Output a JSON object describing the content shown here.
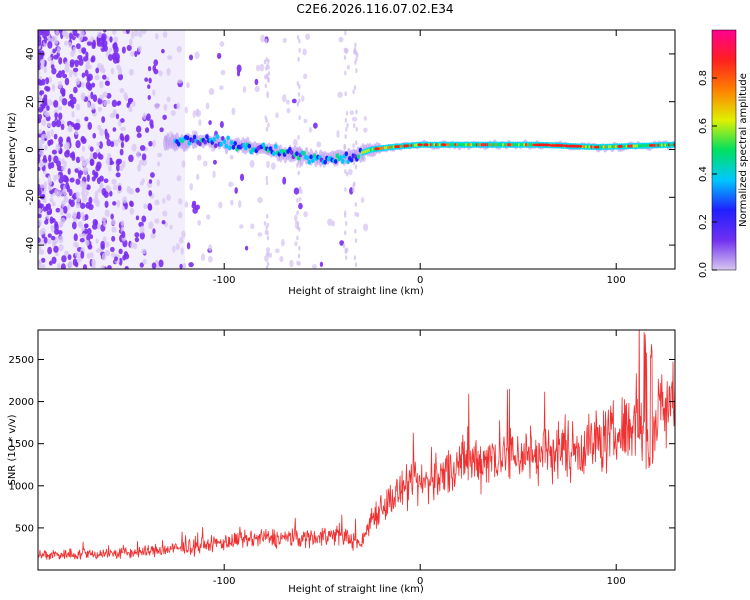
{
  "title": "C2E6.2026.116.07.02.E34",
  "colors": {
    "snr_line": "#f03030",
    "frame": "#000000",
    "colorbar_stops": [
      "#d8c8f0",
      "#7030f0",
      "#2020ff",
      "#00c8ff",
      "#00e060",
      "#e0f000",
      "#ff8000",
      "#ff2020",
      "#ff0090"
    ]
  },
  "chart_data": [
    {
      "type": "heatmap",
      "name": "spectrogram",
      "xlabel": "Height of straight line (km)",
      "ylabel": "Frequency (Hz)",
      "xlim": [
        -195,
        130
      ],
      "ylim": [
        -50,
        50
      ],
      "xticks": [
        -100,
        0,
        100
      ],
      "xtick_labels": [
        "-100",
        "0",
        "100"
      ],
      "yticks": [
        -40,
        -20,
        0,
        20,
        40
      ],
      "ytick_labels": [
        "-40",
        "-20",
        "0",
        "20",
        "40"
      ],
      "colorbar": {
        "label": "Normalized spectral amplitude",
        "range": [
          0,
          1
        ],
        "ticks": [
          0.0,
          0.2,
          0.4,
          0.6,
          0.8
        ],
        "tick_labels": [
          "0.0",
          "0.2",
          "0.4",
          "0.6",
          "0.8"
        ]
      },
      "band_center": [
        {
          "x": -125,
          "f": 3
        },
        {
          "x": -110,
          "f": 4
        },
        {
          "x": -95,
          "f": 2
        },
        {
          "x": -80,
          "f": 0
        },
        {
          "x": -65,
          "f": -2
        },
        {
          "x": -50,
          "f": -4
        },
        {
          "x": -35,
          "f": -3
        },
        {
          "x": -25,
          "f": 0
        },
        {
          "x": -15,
          "f": 1
        },
        {
          "x": 0,
          "f": 2
        },
        {
          "x": 20,
          "f": 2
        },
        {
          "x": 60,
          "f": 2
        },
        {
          "x": 90,
          "f": 1
        },
        {
          "x": 130,
          "f": 2
        }
      ]
    },
    {
      "type": "line",
      "name": "snr",
      "xlabel": "Height of straight line (km)",
      "ylabel": "SNR (10 * v/v)",
      "xlim": [
        -195,
        130
      ],
      "ylim": [
        0,
        2850
      ],
      "xticks": [
        -100,
        0,
        100
      ],
      "xtick_labels": [
        "-100",
        "0",
        "100"
      ],
      "yticks": [
        500,
        1000,
        1500,
        2000,
        2500
      ],
      "ytick_labels": [
        "500",
        "1000",
        "1500",
        "2000",
        "2500"
      ],
      "trend": [
        {
          "x": -195,
          "y": 180
        },
        {
          "x": -150,
          "y": 200
        },
        {
          "x": -120,
          "y": 260
        },
        {
          "x": -100,
          "y": 330
        },
        {
          "x": -80,
          "y": 380
        },
        {
          "x": -60,
          "y": 380
        },
        {
          "x": -40,
          "y": 420
        },
        {
          "x": -30,
          "y": 300
        },
        {
          "x": -25,
          "y": 620
        },
        {
          "x": -20,
          "y": 750
        },
        {
          "x": -10,
          "y": 930
        },
        {
          "x": 0,
          "y": 1020
        },
        {
          "x": 10,
          "y": 1100
        },
        {
          "x": 20,
          "y": 1250
        },
        {
          "x": 40,
          "y": 1360
        },
        {
          "x": 60,
          "y": 1380
        },
        {
          "x": 80,
          "y": 1450
        },
        {
          "x": 100,
          "y": 1600
        },
        {
          "x": 112,
          "y": 1800
        },
        {
          "x": 118,
          "y": 1200
        },
        {
          "x": 122,
          "y": 1950
        },
        {
          "x": 130,
          "y": 2150
        }
      ]
    }
  ]
}
